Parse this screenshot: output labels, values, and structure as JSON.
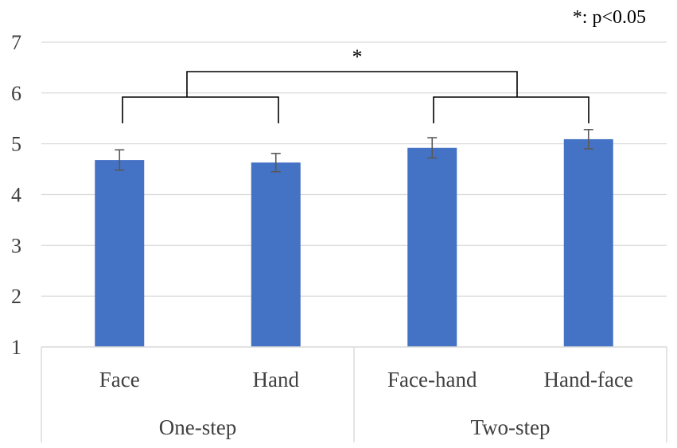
{
  "chart_data": {
    "type": "bar",
    "title": "",
    "xlabel": "",
    "ylabel": "",
    "ylim": [
      1,
      7
    ],
    "yticks": [
      "1",
      "2",
      "3",
      "4",
      "5",
      "6",
      "7"
    ],
    "grid": true,
    "categories": [
      "Face",
      "Hand",
      "Face-hand",
      "Hand-face"
    ],
    "groups": [
      {
        "label": "One-step",
        "categories": [
          "Face",
          "Hand"
        ]
      },
      {
        "label": "Two-step",
        "categories": [
          "Face-hand",
          "Hand-face"
        ]
      }
    ],
    "series": [
      {
        "values": [
          4.68,
          4.63,
          4.92,
          5.09
        ],
        "errors": [
          0.2,
          0.18,
          0.2,
          0.19
        ]
      }
    ],
    "bar_color": "#4472C4",
    "error_color": "#595959",
    "bracket_color": "#000000",
    "annotations": {
      "significance_marker": "*",
      "note": "*: p<0.05"
    }
  }
}
